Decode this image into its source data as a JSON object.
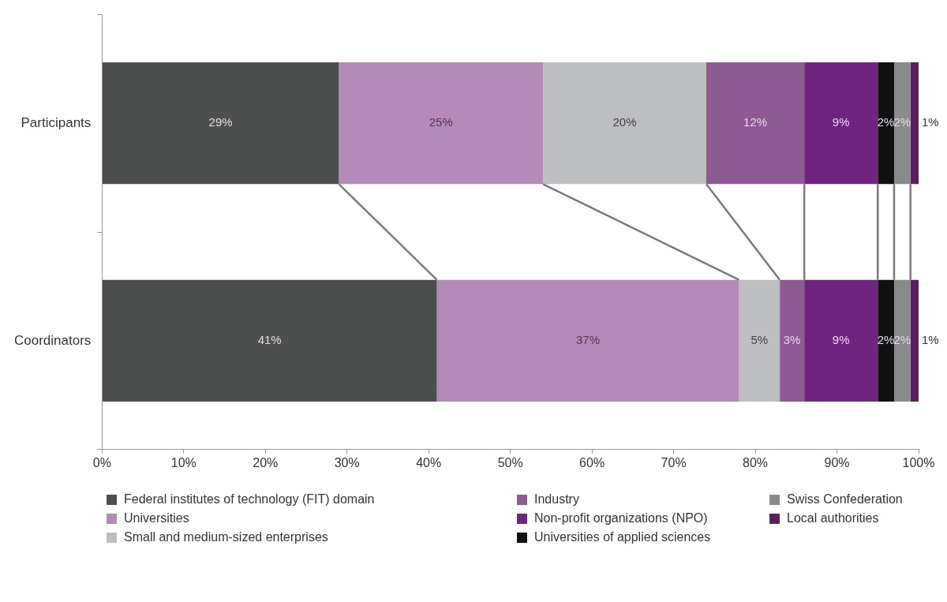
{
  "chart_data": {
    "type": "bar",
    "orientation": "horizontal",
    "stacked": true,
    "legend": "bottom",
    "grid": false,
    "categories": [
      "Participants",
      "Coordinators"
    ],
    "xlim": [
      0,
      100
    ],
    "xticks": [
      {
        "value": 0,
        "label": "0%"
      },
      {
        "value": 10,
        "label": "10%"
      },
      {
        "value": 20,
        "label": "20%"
      },
      {
        "value": 30,
        "label": "30%"
      },
      {
        "value": 40,
        "label": "40%"
      },
      {
        "value": 50,
        "label": "50%"
      },
      {
        "value": 60,
        "label": "60%"
      },
      {
        "value": 70,
        "label": "70%"
      },
      {
        "value": 80,
        "label": "80%"
      },
      {
        "value": 90,
        "label": "90%"
      },
      {
        "value": 100,
        "label": "100%"
      }
    ],
    "series": [
      {
        "name": "Federal institutes of technology (FIT) domain",
        "color": "#4d4f4e",
        "values": [
          29,
          41
        ],
        "value_labels": [
          "29%",
          "41%"
        ]
      },
      {
        "name": "Universities",
        "color": "#b48bb8",
        "values": [
          25,
          37
        ],
        "value_labels": [
          "25%",
          "37%"
        ]
      },
      {
        "name": "Small and medium-sized enterprises",
        "color": "#bcbec0",
        "values": [
          20,
          5
        ],
        "value_labels": [
          "20%",
          "5%"
        ]
      },
      {
        "name": "Industry",
        "color": "#8e5a94",
        "values": [
          12,
          3
        ],
        "value_labels": [
          "12%",
          "3%"
        ]
      },
      {
        "name": "Non-profit organizations (NPO)",
        "color": "#6f2580",
        "values": [
          9,
          9
        ],
        "value_labels": [
          "9%",
          "9%"
        ]
      },
      {
        "name": "Universities of applied sciences",
        "color": "#111111",
        "values": [
          2,
          2
        ],
        "value_labels": [
          "2%",
          "2%"
        ]
      },
      {
        "name": "Swiss Confederation",
        "color": "#898a8c",
        "values": [
          2,
          2
        ],
        "value_labels": [
          "2%",
          "2%"
        ]
      },
      {
        "name": "Local authorities",
        "color": "#5e1f5e",
        "values": [
          1,
          1
        ],
        "value_labels": [
          "1%",
          "1%"
        ]
      }
    ]
  }
}
